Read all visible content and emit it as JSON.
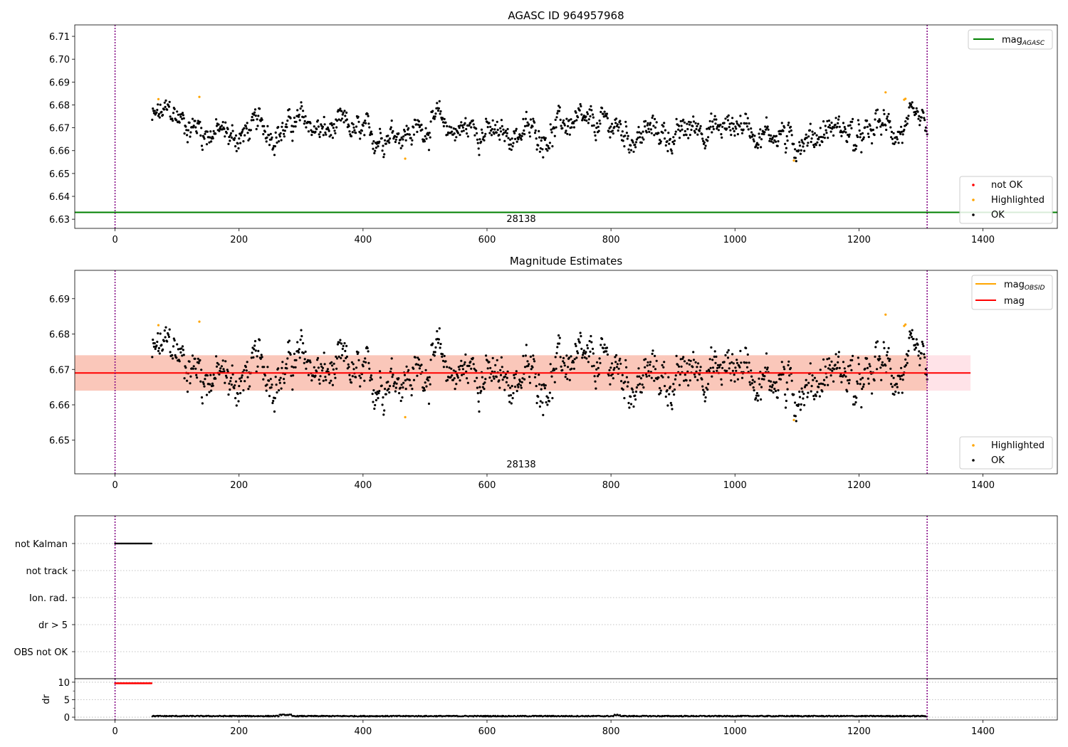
{
  "colors": {
    "ok": "#000000",
    "highlighted": "#ffa500",
    "not_ok": "#ff0000",
    "mag_agasc": "#008000",
    "mag_obsid": "#ffa500",
    "mag": "#ff0000",
    "obsid_marker": "#800080",
    "band_fill": "#f4a582",
    "band_extend_fill": "#ffc0cb"
  },
  "panel_top": {
    "title": "AGASC ID 964957968",
    "legend_line": {
      "label": "mag",
      "subscript": "AGASC"
    },
    "legend_points": [
      "not OK",
      "Highlighted",
      "OK"
    ],
    "obsid_label": "28138"
  },
  "panel_mid": {
    "title": "Magnitude Estimates",
    "legend_lines": [
      {
        "label": "mag",
        "subscript": "OBSID"
      },
      {
        "label": "mag",
        "subscript": ""
      }
    ],
    "legend_points": [
      "Highlighted",
      "OK"
    ],
    "obsid_label": "28138"
  },
  "panel_flags": {
    "categories": [
      "not Kalman",
      "not track",
      "Ion. rad.",
      "dr > 5",
      "OBS not OK"
    ]
  },
  "panel_dr": {
    "ylabel": "dr"
  },
  "chart_data": [
    {
      "type": "scatter",
      "title": "AGASC ID 964957968",
      "xlim": [
        -65,
        1520
      ],
      "ylim": [
        6.626,
        6.715
      ],
      "xticks": [
        0,
        200,
        400,
        600,
        800,
        1000,
        1200,
        1400
      ],
      "yticks": [
        6.63,
        6.64,
        6.65,
        6.66,
        6.67,
        6.68,
        6.69,
        6.7,
        6.71
      ],
      "grid": false,
      "legend": [
        "upper right",
        "lower right"
      ],
      "mag_agasc": 6.633,
      "obsid_bounds": [
        0,
        1310
      ],
      "series": [
        {
          "name": "OK",
          "x_range": [
            60,
            1310
          ],
          "mean": 6.669,
          "count": 1250
        },
        {
          "name": "Highlighted",
          "x": [
            70,
            136,
            468,
            1095,
            1243,
            1273,
            1275
          ],
          "y": [
            6.6825,
            6.6835,
            6.6565,
            6.6557,
            6.6855,
            6.6823,
            6.6827
          ]
        },
        {
          "name": "not OK",
          "x": [],
          "y": []
        }
      ]
    },
    {
      "type": "scatter",
      "title": "Magnitude Estimates",
      "xlim": [
        -65,
        1520
      ],
      "ylim": [
        6.6405,
        6.698
      ],
      "xticks": [
        0,
        200,
        400,
        600,
        800,
        1000,
        1200,
        1400
      ],
      "yticks": [
        6.65,
        6.66,
        6.67,
        6.68,
        6.69
      ],
      "grid": false,
      "legend": [
        "upper right",
        "lower right"
      ],
      "mag": 6.669,
      "mag_band": [
        6.664,
        6.674
      ],
      "mag_obsid": 6.669,
      "obsid_bounds": [
        0,
        1310
      ],
      "series": [
        {
          "name": "OK",
          "x_range": [
            60,
            1310
          ],
          "mean": 6.669,
          "count": 1250
        },
        {
          "name": "Highlighted",
          "x": [
            70,
            136,
            468,
            1095,
            1243,
            1273,
            1275
          ],
          "y": [
            6.6825,
            6.6835,
            6.6565,
            6.6557,
            6.6855,
            6.6823,
            6.6827
          ]
        }
      ]
    },
    {
      "type": "scatter",
      "xlim": [
        -65,
        1520
      ],
      "categories": [
        "not Kalman",
        "not track",
        "Ion. rad.",
        "dr > 5",
        "OBS not OK"
      ],
      "grid": true,
      "series": [
        {
          "name": "not Kalman",
          "x_range": [
            0,
            60
          ]
        }
      ]
    },
    {
      "type": "scatter",
      "ylabel": "dr",
      "xlim": [
        -65,
        1520
      ],
      "ylim": [
        -0.8,
        11
      ],
      "xticks": [
        0,
        200,
        400,
        600,
        800,
        1000,
        1200,
        1400
      ],
      "yticks": [
        0,
        5,
        10
      ],
      "grid": true,
      "series": [
        {
          "name": "dr > 5",
          "x_range": [
            0,
            60
          ],
          "y": 9.7
        },
        {
          "name": "dr",
          "x_range": [
            60,
            1310
          ],
          "mean": 0.3
        }
      ]
    }
  ]
}
